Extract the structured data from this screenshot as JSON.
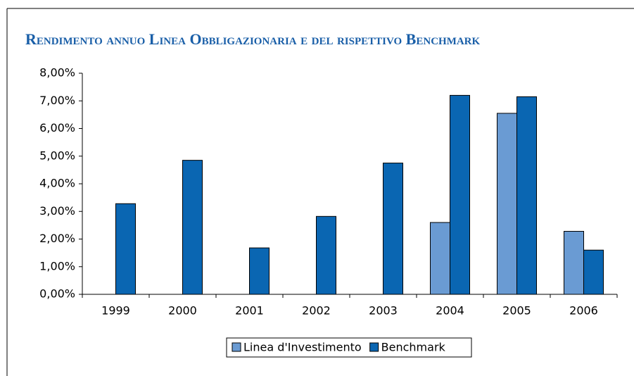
{
  "chart_data": {
    "type": "bar",
    "title": "Rendimento annuo Linea Obbligazionaria e del rispettivo Benchmark",
    "categories": [
      "1999",
      "2000",
      "2001",
      "2002",
      "2003",
      "2004",
      "2005",
      "2006"
    ],
    "series": [
      {
        "name": "Linea d'Investimento",
        "color": "#6a9bd3",
        "values": [
          null,
          null,
          null,
          null,
          null,
          2.6,
          6.55,
          2.28
        ]
      },
      {
        "name": "Benchmark",
        "color": "#0a66b2",
        "values": [
          3.28,
          4.85,
          1.68,
          2.82,
          4.75,
          7.2,
          7.15,
          1.6
        ]
      }
    ],
    "ylim": [
      0,
      8
    ],
    "yticks": [
      {
        "value": 0,
        "label": "0,00%"
      },
      {
        "value": 1,
        "label": "1,00%"
      },
      {
        "value": 2,
        "label": "2,00%"
      },
      {
        "value": 3,
        "label": "3,00%"
      },
      {
        "value": 4,
        "label": "4,00%"
      },
      {
        "value": 5,
        "label": "5,00%"
      },
      {
        "value": 6,
        "label": "6,00%"
      },
      {
        "value": 7,
        "label": "7,00%"
      },
      {
        "value": 8,
        "label": "8,00%"
      }
    ],
    "grid": false,
    "legend": "bottom"
  }
}
